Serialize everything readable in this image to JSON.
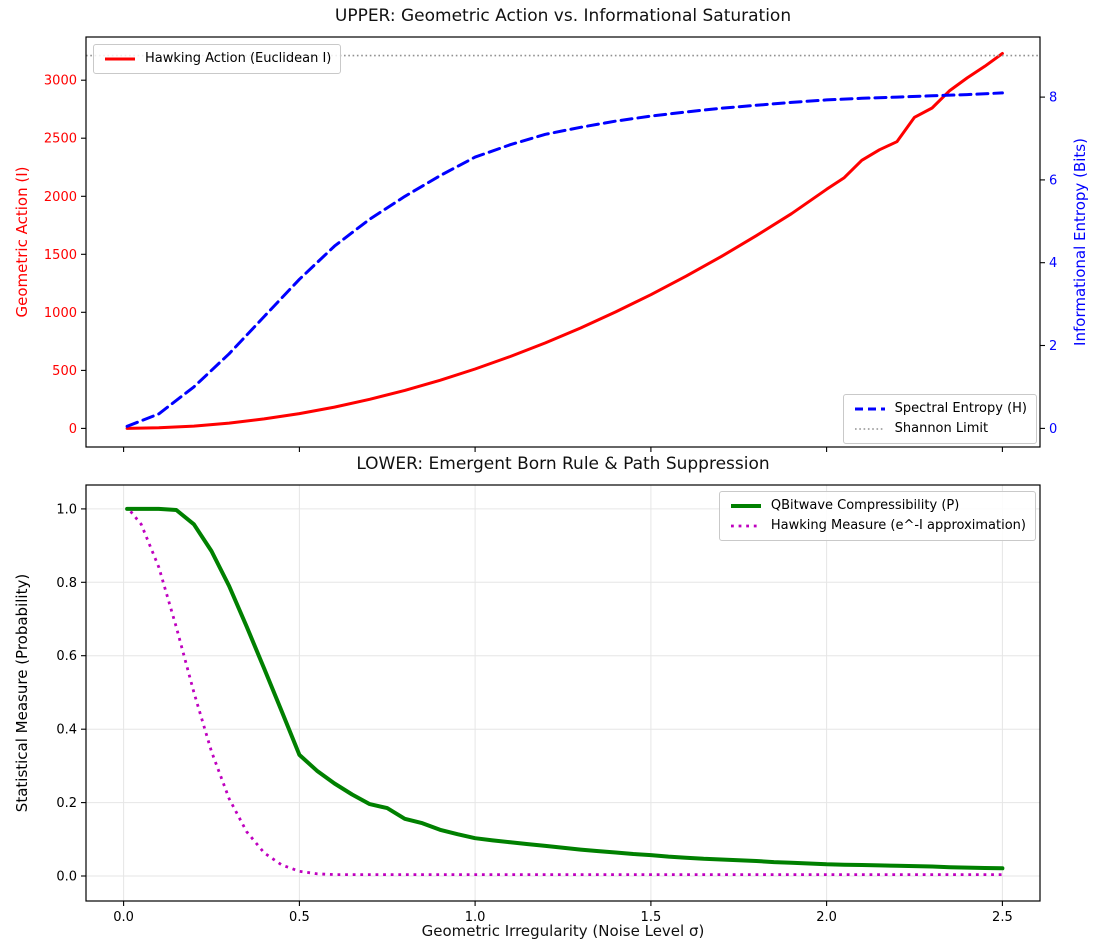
{
  "figure": {
    "background": "#ffffff",
    "spine_color": "#000000",
    "grid_color": "#e6e6e6"
  },
  "chart_data": [
    {
      "type": "line",
      "title": "UPPER: Geometric Action vs. Informational Saturation",
      "grid": false,
      "x": {
        "lim": [
          -0.107,
          2.607
        ],
        "tick_values": [
          0.0,
          0.5,
          1.0,
          1.5,
          2.0,
          2.5
        ],
        "tick_labels": []
      },
      "axes": {
        "left": {
          "label": "Geometric Action (I)",
          "color": "#ff0000",
          "lim": [
            -160,
            3372
          ],
          "tick_values": [
            0,
            500,
            1000,
            1500,
            2000,
            2500,
            3000
          ],
          "tick_labels": [
            "0",
            "500",
            "1000",
            "1500",
            "2000",
            "2500",
            "3000"
          ]
        },
        "right": {
          "label": "Informational Entropy (Bits)",
          "color": "#0000ff",
          "lim": [
            -0.45,
            9.45
          ],
          "tick_values": [
            0,
            2,
            4,
            6,
            8
          ],
          "tick_labels": [
            "0",
            "2",
            "4",
            "6",
            "8"
          ]
        }
      },
      "series": [
        {
          "name": "Hawking Action (Euclidean I)",
          "axis": "left",
          "color": "#ff0000",
          "style": "solid",
          "width": 3,
          "x": [
            0.01,
            0.1,
            0.2,
            0.3,
            0.4,
            0.5,
            0.6,
            0.7,
            0.8,
            0.9,
            1.0,
            1.1,
            1.2,
            1.3,
            1.4,
            1.5,
            1.6,
            1.7,
            1.8,
            1.9,
            2.0,
            2.05,
            2.1,
            2.15,
            2.2,
            2.25,
            2.3,
            2.35,
            2.4,
            2.45,
            2.5
          ],
          "y": [
            0,
            5,
            20,
            46,
            82,
            128,
            184,
            251,
            328,
            415,
            512,
            620,
            737,
            865,
            1004,
            1152,
            1311,
            1480,
            1660,
            1850,
            2060,
            2160,
            2310,
            2400,
            2470,
            2680,
            2760,
            2910,
            3020,
            3120,
            3230
          ]
        },
        {
          "name": "Spectral Entropy (H)",
          "axis": "right",
          "color": "#0000ff",
          "style": "dashed",
          "width": 3,
          "x": [
            0.01,
            0.1,
            0.2,
            0.3,
            0.4,
            0.5,
            0.6,
            0.7,
            0.8,
            0.9,
            1.0,
            1.1,
            1.2,
            1.3,
            1.4,
            1.5,
            1.6,
            1.7,
            1.8,
            1.9,
            2.0,
            2.1,
            2.2,
            2.3,
            2.4,
            2.5
          ],
          "y": [
            0.05,
            0.35,
            1.0,
            1.8,
            2.7,
            3.6,
            4.4,
            5.05,
            5.6,
            6.1,
            6.55,
            6.85,
            7.1,
            7.27,
            7.42,
            7.54,
            7.64,
            7.73,
            7.8,
            7.87,
            7.93,
            7.97,
            8.0,
            8.03,
            8.06,
            8.1
          ]
        },
        {
          "name": "Shannon Limit",
          "axis": "right",
          "color": "#909090",
          "style": "dotted",
          "width": 1.6,
          "x": [
            -0.107,
            2.607
          ],
          "y": [
            9,
            9
          ]
        }
      ],
      "legends": [
        {
          "loc": "upper left",
          "entries": [
            "Hawking Action (Euclidean I)"
          ]
        },
        {
          "loc": "lower right",
          "entries": [
            "Spectral Entropy (H)",
            "Shannon Limit"
          ]
        }
      ]
    },
    {
      "type": "line",
      "title": "LOWER: Emergent Born Rule & Path Suppression",
      "grid": true,
      "x": {
        "label": "Geometric Irregularity (Noise Level σ)",
        "lim": [
          -0.107,
          2.607
        ],
        "tick_values": [
          0.0,
          0.5,
          1.0,
          1.5,
          2.0,
          2.5
        ],
        "tick_labels": [
          "0.0",
          "0.5",
          "1.0",
          "1.5",
          "2.0",
          "2.5"
        ]
      },
      "axes": {
        "left": {
          "label": "Statistical Measure (Probability)",
          "color": "#000000",
          "lim": [
            -0.068,
            1.065
          ],
          "tick_values": [
            0.0,
            0.2,
            0.4,
            0.6,
            0.8,
            1.0
          ],
          "tick_labels": [
            "0.0",
            "0.2",
            "0.4",
            "0.6",
            "0.8",
            "1.0"
          ]
        }
      },
      "series": [
        {
          "name": "QBitwave Compressibility (P)",
          "axis": "left",
          "color": "#008000",
          "style": "solid",
          "width": 4,
          "x": [
            0.01,
            0.05,
            0.1,
            0.15,
            0.2,
            0.25,
            0.3,
            0.35,
            0.4,
            0.45,
            0.5,
            0.55,
            0.6,
            0.65,
            0.7,
            0.75,
            0.8,
            0.85,
            0.9,
            0.95,
            1.0,
            1.05,
            1.1,
            1.15,
            1.2,
            1.25,
            1.3,
            1.35,
            1.4,
            1.45,
            1.5,
            1.55,
            1.6,
            1.65,
            1.7,
            1.75,
            1.8,
            1.85,
            1.9,
            1.95,
            2.0,
            2.05,
            2.1,
            2.15,
            2.2,
            2.25,
            2.3,
            2.35,
            2.4,
            2.45,
            2.5
          ],
          "y": [
            1.0,
            1.0,
            1.0,
            0.997,
            0.958,
            0.885,
            0.79,
            0.68,
            0.565,
            0.448,
            0.33,
            0.287,
            0.252,
            0.222,
            0.196,
            0.185,
            0.156,
            0.144,
            0.126,
            0.114,
            0.103,
            0.097,
            0.092,
            0.087,
            0.082,
            0.077,
            0.072,
            0.068,
            0.064,
            0.06,
            0.057,
            0.053,
            0.05,
            0.047,
            0.045,
            0.043,
            0.041,
            0.038,
            0.036,
            0.034,
            0.032,
            0.031,
            0.03,
            0.029,
            0.028,
            0.027,
            0.026,
            0.024,
            0.023,
            0.022,
            0.021
          ]
        },
        {
          "name": "Hawking Measure (e^-I approximation)",
          "axis": "left",
          "color": "#bf00bf",
          "style": "dotted",
          "width": 2.8,
          "x": [
            0.02,
            0.05,
            0.1,
            0.15,
            0.2,
            0.25,
            0.3,
            0.35,
            0.4,
            0.45,
            0.5,
            0.55,
            0.6,
            0.7,
            0.8,
            0.9,
            1.0,
            1.1,
            1.2,
            1.3,
            1.4,
            1.5,
            1.6,
            1.7,
            1.8,
            1.9,
            2.0,
            2.1,
            2.2,
            2.3,
            2.4,
            2.5
          ],
          "y": [
            0.993,
            0.958,
            0.841,
            0.678,
            0.5,
            0.339,
            0.211,
            0.121,
            0.063,
            0.03,
            0.013,
            0.006,
            0.004,
            0.004,
            0.004,
            0.004,
            0.004,
            0.004,
            0.004,
            0.004,
            0.004,
            0.004,
            0.004,
            0.004,
            0.004,
            0.004,
            0.004,
            0.004,
            0.004,
            0.004,
            0.004,
            0.004
          ]
        }
      ],
      "legends": [
        {
          "loc": "upper right",
          "entries": [
            "QBitwave Compressibility (P)",
            "Hawking Measure (e^-I approximation)"
          ]
        }
      ]
    }
  ]
}
